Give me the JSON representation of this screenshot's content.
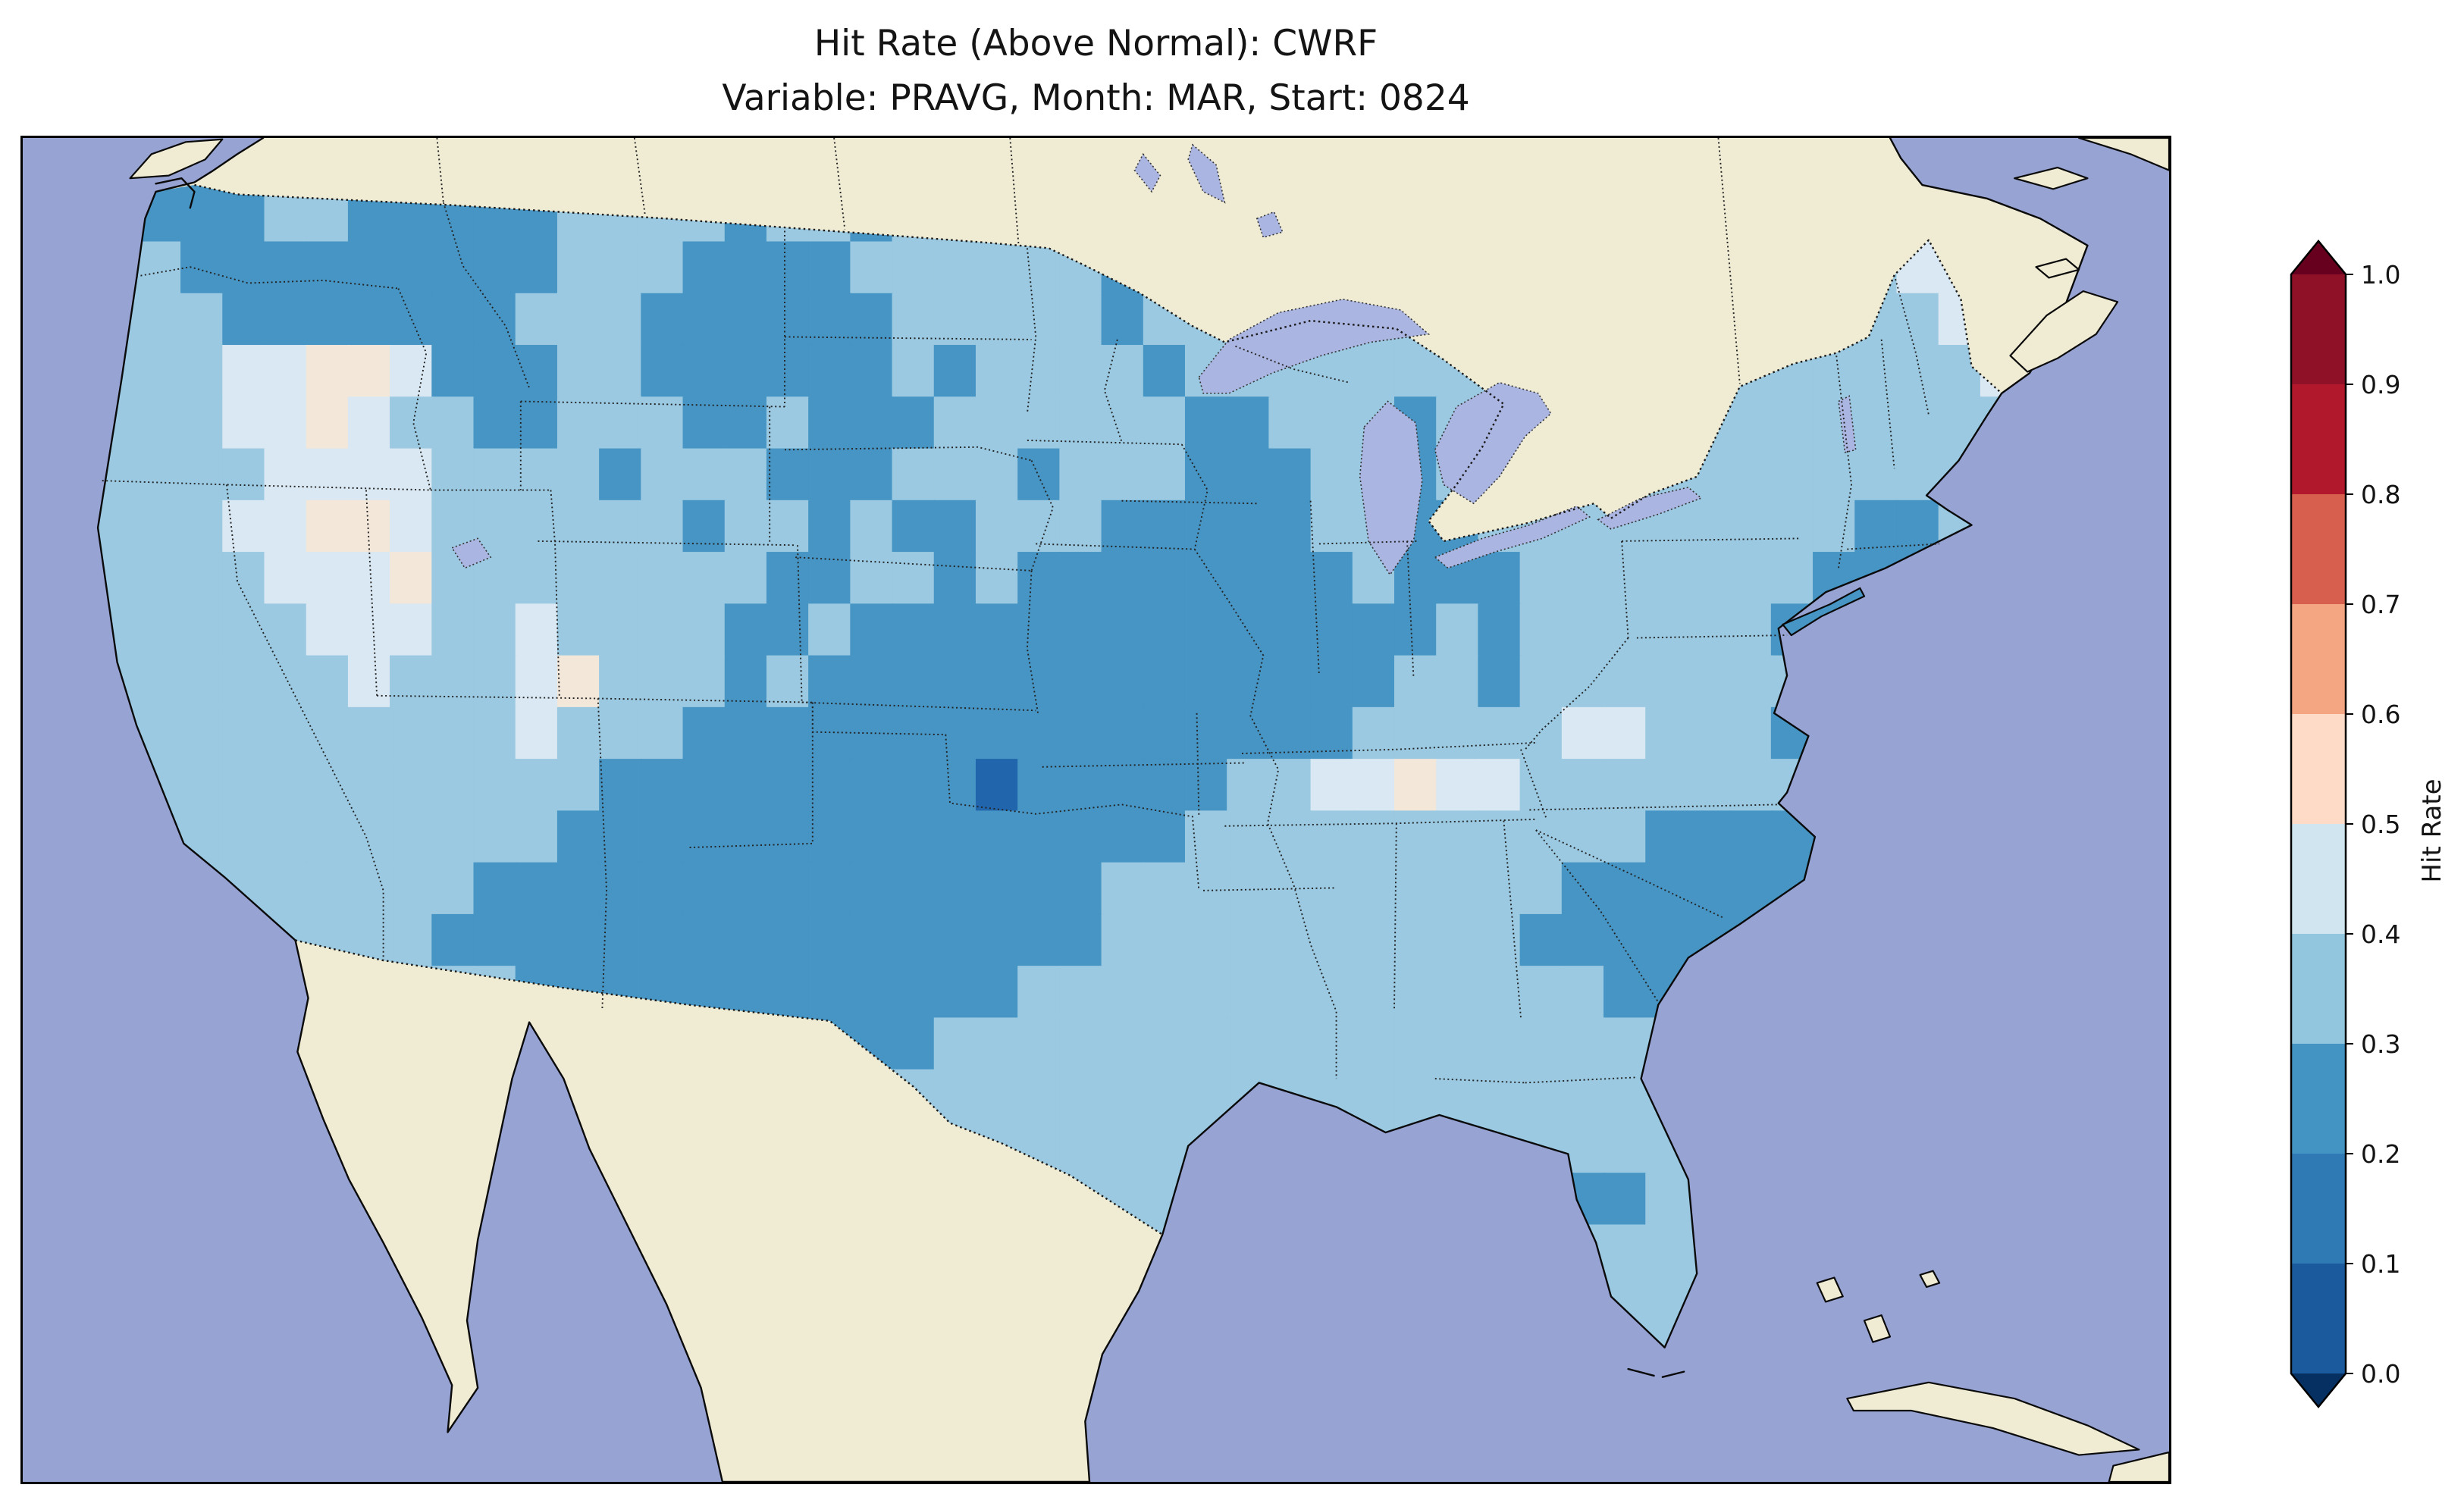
{
  "title": {
    "line1": "Hit Rate (Above Normal): CWRF",
    "line2": "Variable: PRAVG, Month: MAR, Start: 0824"
  },
  "colors": {
    "ocean": "#97a3d3",
    "land": "#f0ecd4",
    "lake": "#abb5e1",
    "coastline": "#0a0a0a",
    "figure_background": "#ffffff"
  },
  "colorbar": {
    "label": "Hit Rate",
    "ticks": [
      "1.0",
      "0.9",
      "0.8",
      "0.7",
      "0.6",
      "0.5",
      "0.4",
      "0.3",
      "0.2",
      "0.1",
      "0.0"
    ],
    "bin_colors": [
      "#1c5a9e",
      "#2f79b5",
      "#4393c3",
      "#92c5de",
      "#d1e5f0",
      "#fddbc7",
      "#f4a582",
      "#d6604d",
      "#b2182b",
      "#8f1127"
    ],
    "under_color": "#053061",
    "over_color": "#67001f"
  },
  "chart_data": {
    "type": "heatmap",
    "title": "Hit Rate (Above Normal): CWRF",
    "subtitle": "Variable: PRAVG, Month: MAR, Start: 0824",
    "metric": "Hit Rate",
    "category": "Above Normal",
    "model": "CWRF",
    "variable": "PRAVG",
    "month": "MAR",
    "start": "0824",
    "region": "Contiguous United States",
    "value_range": [
      0.0,
      1.0
    ],
    "bin_width": 0.1,
    "colorbar_label": "Hit Rate",
    "colorbar_orientation": "vertical-right",
    "observed_bins_on_map": [
      "0.1-0.2",
      "0.2-0.3",
      "0.3-0.4",
      "0.4-0.5",
      "0.5-0.6"
    ],
    "grid": {
      "note": "Coarse recreation of the gridded hit-rate field over CONUS; each character is one cell binned to 0.1-wide hit-rate classes",
      "encoding": {
        "1": "0.1-0.2",
        "2": "0.2-0.3",
        "3": "0.3-0.4",
        "4": "0.4-0.5",
        "5": "0.5-0.6"
      },
      "legend_colors": {
        "1": "#2166ac",
        "2": "#4695c4",
        "3": "#9ac9e1",
        "4": "#d9e8f2",
        "5": "#f3e7da"
      },
      "origin": [
        15,
        0
      ],
      "cell": [
        19.5,
        38.5
      ],
      "rows": [
        "332233222223333322333333333333333333333333334444",
        "332223322222333323323333333333333333333333334454",
        "333222222222333222233333322333333333333333334443",
        "333322222223332222223333323333333333333333333444",
        "333344554222332222223233332333333333333333333344",
        "333344543322333223222333333223332333333333333334",
        "333334444333323332223332333222332333333333333333",
        "333344554333333233232233322222332233333333322333",
        "333334445333333332233232222222232223333333222333",
        "333333444334333322322222222222222323333332223333",
        "333333343334533323222222222222223323333333223333",
        "333333333334333222222222222222233333443332223333",
        "333333333333322222222212222233445443333333222222",
        "333333333333222222222222222333333333332222222233",
        "333333333322222222222222233333333333222222222333",
        "333333333222222222222222233333333332222222223333",
        "333333333332222222222223333333333333322223333333",
        "333333333333222222222333333333333333333333333333",
        "333333333333332222233333333333333333333333333333",
        "333333333333333333333333333333333333333233333333",
        "333333333333333333333333333333333333223333333333",
        "333333333333333333333333333333333322333333333333",
        "333333333333333333333333333333333323333333333333",
        "333333333333333333333333333333333344333333333333"
      ]
    }
  }
}
